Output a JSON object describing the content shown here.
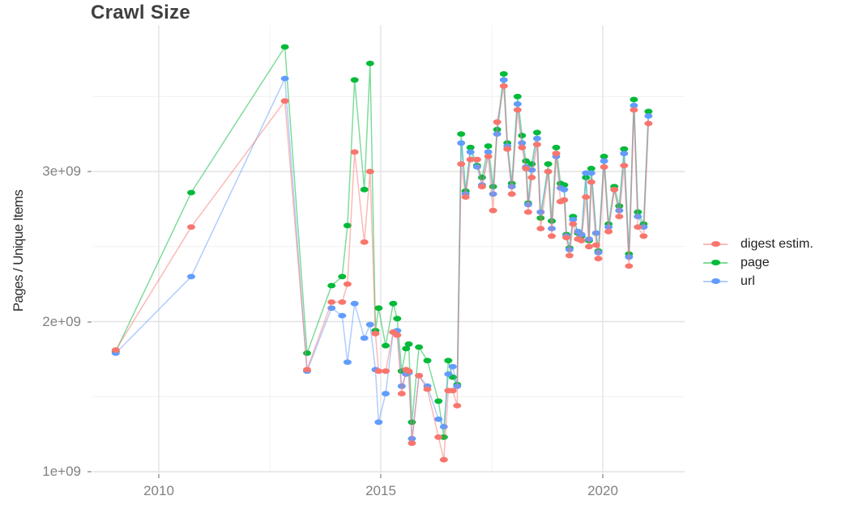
{
  "chart_data": {
    "type": "line",
    "title": "Crawl Size",
    "xlabel": "",
    "ylabel": "Pages / Unique Items",
    "unit": "items (value × 1e9)",
    "grid": "major+minor",
    "legend_position": "right",
    "x_ticks": [
      "2010",
      "2015",
      "2020"
    ],
    "x_tick_years": [
      2010,
      2015,
      2020
    ],
    "y_ticks": [
      "1e+09",
      "2e+09",
      "3e+09"
    ],
    "y_tick_values": [
      1.0,
      2.0,
      3.0
    ],
    "xlim": [
      2008.5,
      2021.9
    ],
    "ylim": [
      0.97,
      4.0
    ],
    "x": [
      2009.03,
      2010.73,
      2012.84,
      2013.34,
      2013.89,
      2014.13,
      2014.25,
      2014.41,
      2014.63,
      2014.76,
      2014.88,
      2014.95,
      2015.11,
      2015.28,
      2015.37,
      2015.47,
      2015.57,
      2015.63,
      2015.7,
      2015.86,
      2016.05,
      2016.3,
      2016.42,
      2016.52,
      2016.62,
      2016.72,
      2016.81,
      2016.91,
      2017.02,
      2017.17,
      2017.28,
      2017.42,
      2017.53,
      2017.62,
      2017.77,
      2017.85,
      2017.95,
      2018.08,
      2018.18,
      2018.27,
      2018.32,
      2018.4,
      2018.52,
      2018.6,
      2018.77,
      2018.85,
      2018.95,
      2019.05,
      2019.13,
      2019.18,
      2019.25,
      2019.33,
      2019.44,
      2019.52,
      2019.62,
      2019.69,
      2019.74,
      2019.85,
      2019.9,
      2020.03,
      2020.13,
      2020.26,
      2020.37,
      2020.48,
      2020.59,
      2020.7,
      2020.79,
      2020.92,
      2021.03
    ],
    "series": [
      {
        "name": "digest estim.",
        "color": "#F8766D",
        "values": [
          1.81,
          2.63,
          3.47,
          1.68,
          2.13,
          2.13,
          2.25,
          3.13,
          2.53,
          3.0,
          1.92,
          1.67,
          1.67,
          1.93,
          1.91,
          1.52,
          1.68,
          1.67,
          1.19,
          1.64,
          1.55,
          1.23,
          1.08,
          1.54,
          1.54,
          1.44,
          3.05,
          2.83,
          3.08,
          3.08,
          2.9,
          3.1,
          2.74,
          3.33,
          3.57,
          3.15,
          2.85,
          3.41,
          3.16,
          3.02,
          2.73,
          2.96,
          3.18,
          2.62,
          3.0,
          2.57,
          3.12,
          2.8,
          2.81,
          2.56,
          2.44,
          2.65,
          2.55,
          2.54,
          2.83,
          2.5,
          2.93,
          2.51,
          2.42,
          3.03,
          2.6,
          2.88,
          2.7,
          3.04,
          2.37,
          3.41,
          2.63,
          2.57,
          3.32
        ]
      },
      {
        "name": "page",
        "color": "#00BA38",
        "values": [
          1.8,
          2.86,
          3.83,
          1.79,
          2.24,
          2.3,
          2.64,
          3.61,
          2.88,
          3.72,
          1.94,
          2.09,
          1.84,
          2.12,
          2.02,
          1.67,
          1.82,
          1.85,
          1.33,
          1.83,
          1.74,
          1.47,
          1.23,
          1.74,
          1.63,
          1.58,
          3.25,
          2.87,
          3.16,
          3.04,
          2.96,
          3.17,
          2.9,
          3.28,
          3.65,
          3.19,
          2.92,
          3.5,
          3.24,
          3.07,
          2.79,
          3.05,
          3.26,
          2.69,
          3.05,
          2.67,
          3.16,
          2.92,
          2.91,
          2.58,
          2.49,
          2.7,
          2.59,
          2.57,
          2.96,
          2.54,
          3.02,
          2.59,
          2.47,
          3.1,
          2.65,
          2.9,
          2.77,
          3.15,
          2.45,
          3.48,
          2.73,
          2.65,
          3.4
        ]
      },
      {
        "name": "url",
        "color": "#619CFF",
        "values": [
          1.79,
          2.3,
          3.62,
          1.67,
          2.09,
          2.04,
          1.73,
          2.12,
          1.89,
          1.98,
          1.68,
          1.33,
          1.52,
          1.93,
          1.94,
          1.57,
          1.65,
          1.66,
          1.22,
          1.64,
          1.57,
          1.35,
          1.3,
          1.65,
          1.7,
          1.57,
          3.19,
          2.85,
          3.13,
          3.03,
          2.91,
          3.13,
          2.85,
          3.25,
          3.61,
          3.17,
          2.9,
          3.45,
          3.19,
          3.03,
          2.78,
          3.01,
          3.22,
          2.73,
          3.0,
          2.62,
          3.1,
          2.89,
          2.88,
          2.57,
          2.48,
          2.68,
          2.6,
          2.58,
          2.99,
          2.55,
          2.99,
          2.59,
          2.46,
          3.07,
          2.63,
          2.88,
          2.74,
          3.12,
          2.43,
          3.44,
          2.7,
          2.63,
          3.37
        ]
      }
    ]
  },
  "legend": {
    "items": [
      {
        "label": "digest estim.",
        "color": "#F8766D"
      },
      {
        "label": "page",
        "color": "#00BA38"
      },
      {
        "label": "url",
        "color": "#619CFF"
      }
    ]
  },
  "style_colors": {
    "grid_major": "#e3e3e3",
    "grid_minor": "#f0f0f0",
    "axis_text": "#818181",
    "title_text": "#3f3f3f"
  }
}
